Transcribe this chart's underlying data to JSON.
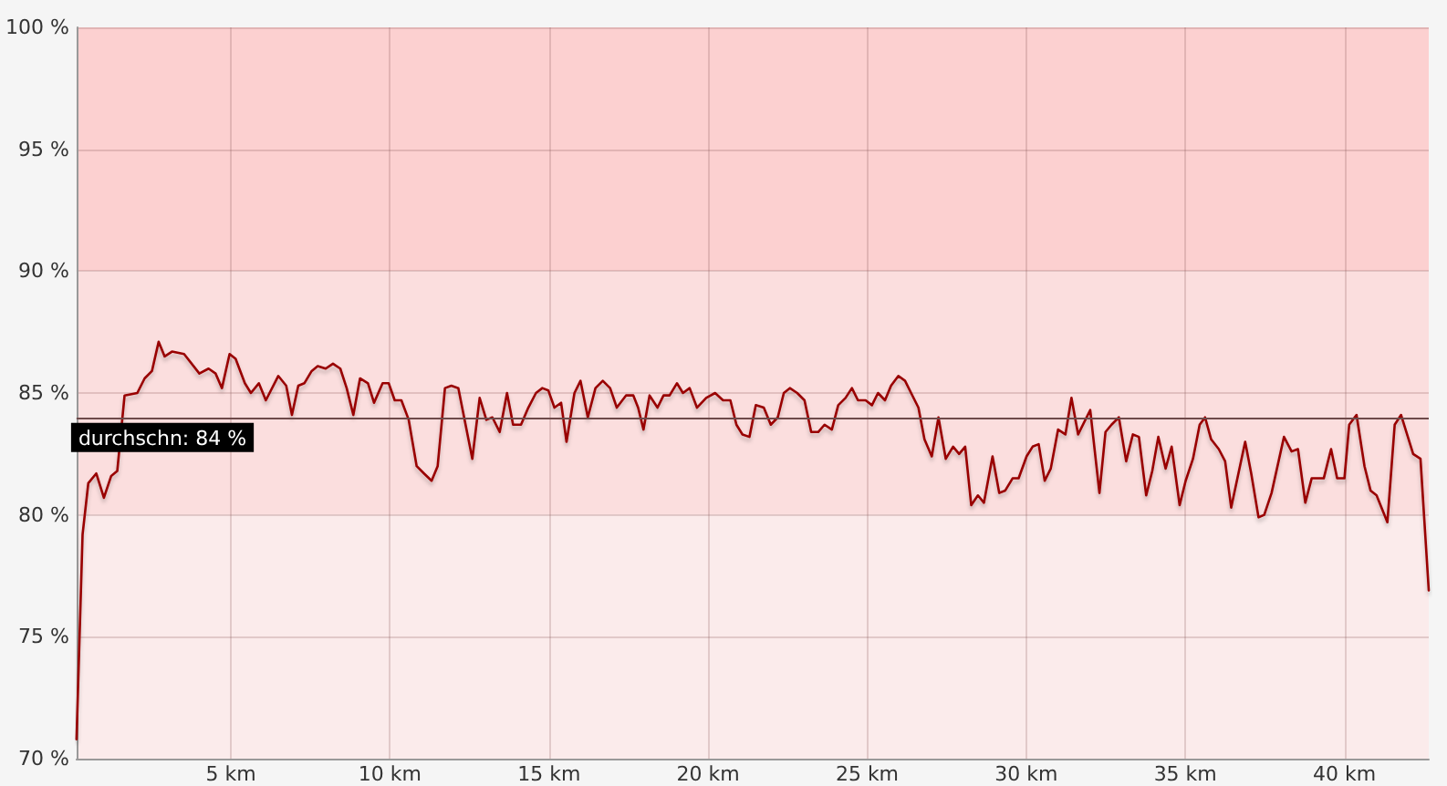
{
  "chart_data": {
    "type": "line",
    "x": [
      0.15,
      0.34,
      0.52,
      0.77,
      1.01,
      1.24,
      1.43,
      1.66,
      2.06,
      2.29,
      2.52,
      2.73,
      2.92,
      3.15,
      3.53,
      4.01,
      4.3,
      4.52,
      4.72,
      4.96,
      5.15,
      5.44,
      5.63,
      5.88,
      6.1,
      6.49,
      6.74,
      6.92,
      7.12,
      7.31,
      7.54,
      7.73,
      7.98,
      8.21,
      8.44,
      8.64,
      8.85,
      9.06,
      9.31,
      9.5,
      9.77,
      9.96,
      10.15,
      10.36,
      10.59,
      10.84,
      11.07,
      11.31,
      11.5,
      11.73,
      11.93,
      12.15,
      12.59,
      12.82,
      13.03,
      13.22,
      13.45,
      13.68,
      13.87,
      14.12,
      14.35,
      14.59,
      14.79,
      14.98,
      15.17,
      15.38,
      15.55,
      15.8,
      15.99,
      16.22,
      16.46,
      16.69,
      16.92,
      17.13,
      17.42,
      17.65,
      17.8,
      17.97,
      18.16,
      18.41,
      18.6,
      18.79,
      19.02,
      19.21,
      19.42,
      19.65,
      19.94,
      20.22,
      20.47,
      20.7,
      20.89,
      21.08,
      21.3,
      21.5,
      21.75,
      21.97,
      22.19,
      22.38,
      22.57,
      22.8,
      23.03,
      23.24,
      23.46,
      23.66,
      23.89,
      24.09,
      24.32,
      24.52,
      24.71,
      24.95,
      25.15,
      25.34,
      25.56,
      25.75,
      25.98,
      26.19,
      26.38,
      26.61,
      26.8,
      27.03,
      27.24,
      27.47,
      27.7,
      27.89,
      28.08,
      28.27,
      28.48,
      28.67,
      28.94,
      29.15,
      29.34,
      29.57,
      29.76,
      30.01,
      30.2,
      30.39,
      30.58,
      30.77,
      31.0,
      31.23,
      31.42,
      31.63,
      32.01,
      32.3,
      32.49,
      32.68,
      32.91,
      33.14,
      33.35,
      33.54,
      33.77,
      33.96,
      34.15,
      34.38,
      34.57,
      34.82,
      35.01,
      35.24,
      35.45,
      35.62,
      35.81,
      36.05,
      36.25,
      36.44,
      36.88,
      37.07,
      37.3,
      37.48,
      37.71,
      38.1,
      38.34,
      38.54,
      38.77,
      38.97,
      39.35,
      39.58,
      39.77,
      40.0,
      40.15,
      40.38,
      40.63,
      40.82,
      41.01,
      41.35,
      41.58,
      41.78,
      42.16,
      42.39,
      42.65
    ],
    "series": [
      {
        "color": "#990000",
        "values": [
          70.8,
          79.2,
          81.3,
          81.7,
          80.7,
          81.6,
          81.8,
          84.9,
          85.0,
          85.6,
          85.9,
          87.1,
          86.5,
          86.7,
          86.6,
          85.8,
          86.0,
          85.8,
          85.2,
          86.6,
          86.4,
          85.4,
          85.0,
          85.4,
          84.7,
          85.7,
          85.3,
          84.1,
          85.3,
          85.4,
          85.9,
          86.1,
          86.0,
          86.2,
          86.0,
          85.2,
          84.1,
          85.6,
          85.4,
          84.6,
          85.4,
          85.4,
          84.7,
          84.7,
          83.9,
          82.0,
          81.7,
          81.4,
          82.0,
          85.2,
          85.3,
          85.2,
          82.3,
          84.8,
          83.9,
          84.0,
          83.4,
          85.0,
          83.7,
          83.7,
          84.4,
          85.0,
          85.2,
          85.1,
          84.4,
          84.6,
          83.0,
          85.0,
          85.5,
          84.0,
          85.2,
          85.5,
          85.2,
          84.4,
          84.9,
          84.9,
          84.4,
          83.5,
          84.9,
          84.4,
          84.9,
          84.9,
          85.4,
          85.0,
          85.2,
          84.4,
          84.8,
          85.0,
          84.7,
          84.7,
          83.7,
          83.3,
          83.2,
          84.5,
          84.4,
          83.7,
          84.0,
          85.0,
          85.2,
          85.0,
          84.7,
          83.4,
          83.4,
          83.7,
          83.5,
          84.5,
          84.8,
          85.2,
          84.7,
          84.7,
          84.5,
          85.0,
          84.7,
          85.3,
          85.7,
          85.5,
          85.0,
          84.4,
          83.1,
          82.4,
          84.0,
          82.3,
          82.8,
          82.5,
          82.8,
          80.4,
          80.8,
          80.5,
          82.4,
          80.9,
          81.0,
          81.5,
          81.5,
          82.4,
          82.8,
          82.9,
          81.4,
          81.9,
          83.5,
          83.3,
          84.8,
          83.3,
          84.3,
          80.9,
          83.4,
          83.7,
          84.0,
          82.2,
          83.3,
          83.2,
          80.8,
          81.8,
          83.2,
          81.9,
          82.8,
          80.4,
          81.4,
          82.3,
          83.7,
          84.0,
          83.1,
          82.7,
          82.2,
          80.3,
          83.0,
          81.7,
          79.9,
          80.0,
          80.9,
          83.2,
          82.6,
          82.7,
          80.5,
          81.5,
          81.5,
          82.7,
          81.5,
          81.5,
          83.7,
          84.1,
          82.0,
          81.0,
          80.8,
          79.7,
          83.7,
          84.1,
          82.5,
          82.3,
          76.9
        ]
      }
    ],
    "xlim": [
      0.15,
      42.65
    ],
    "xticks": [
      {
        "value": 5,
        "label": "5 km"
      },
      {
        "value": 10,
        "label": "10 km"
      },
      {
        "value": 15,
        "label": "15 km"
      },
      {
        "value": 20,
        "label": "20 km"
      },
      {
        "value": 25,
        "label": "25 km"
      },
      {
        "value": 30,
        "label": "30 km"
      },
      {
        "value": 35,
        "label": "35 km"
      },
      {
        "value": 40,
        "label": "40 km"
      }
    ],
    "ylim": [
      70,
      100
    ],
    "yticks": [
      {
        "value": 70,
        "label": "70 %"
      },
      {
        "value": 75,
        "label": "75 %"
      },
      {
        "value": 80,
        "label": "80 %"
      },
      {
        "value": 85,
        "label": "85 %"
      },
      {
        "value": 90,
        "label": "90 %"
      },
      {
        "value": 95,
        "label": "95 %"
      },
      {
        "value": 100,
        "label": "100 %"
      }
    ],
    "bands": [
      {
        "axis": "y",
        "from": 90,
        "to": 100,
        "color": "#fcd0d0"
      },
      {
        "axis": "y",
        "from": 80,
        "to": 90,
        "color": "#fbdede"
      },
      {
        "axis": "y",
        "from": 70,
        "to": 80,
        "color": "#fbebeb"
      }
    ],
    "ref_lines": [
      {
        "axis": "y",
        "value": 84,
        "label": "durchschn: 84 %",
        "color": "#6e4a4a"
      }
    ],
    "grid": true,
    "marker": "none",
    "line_style": "solid"
  }
}
